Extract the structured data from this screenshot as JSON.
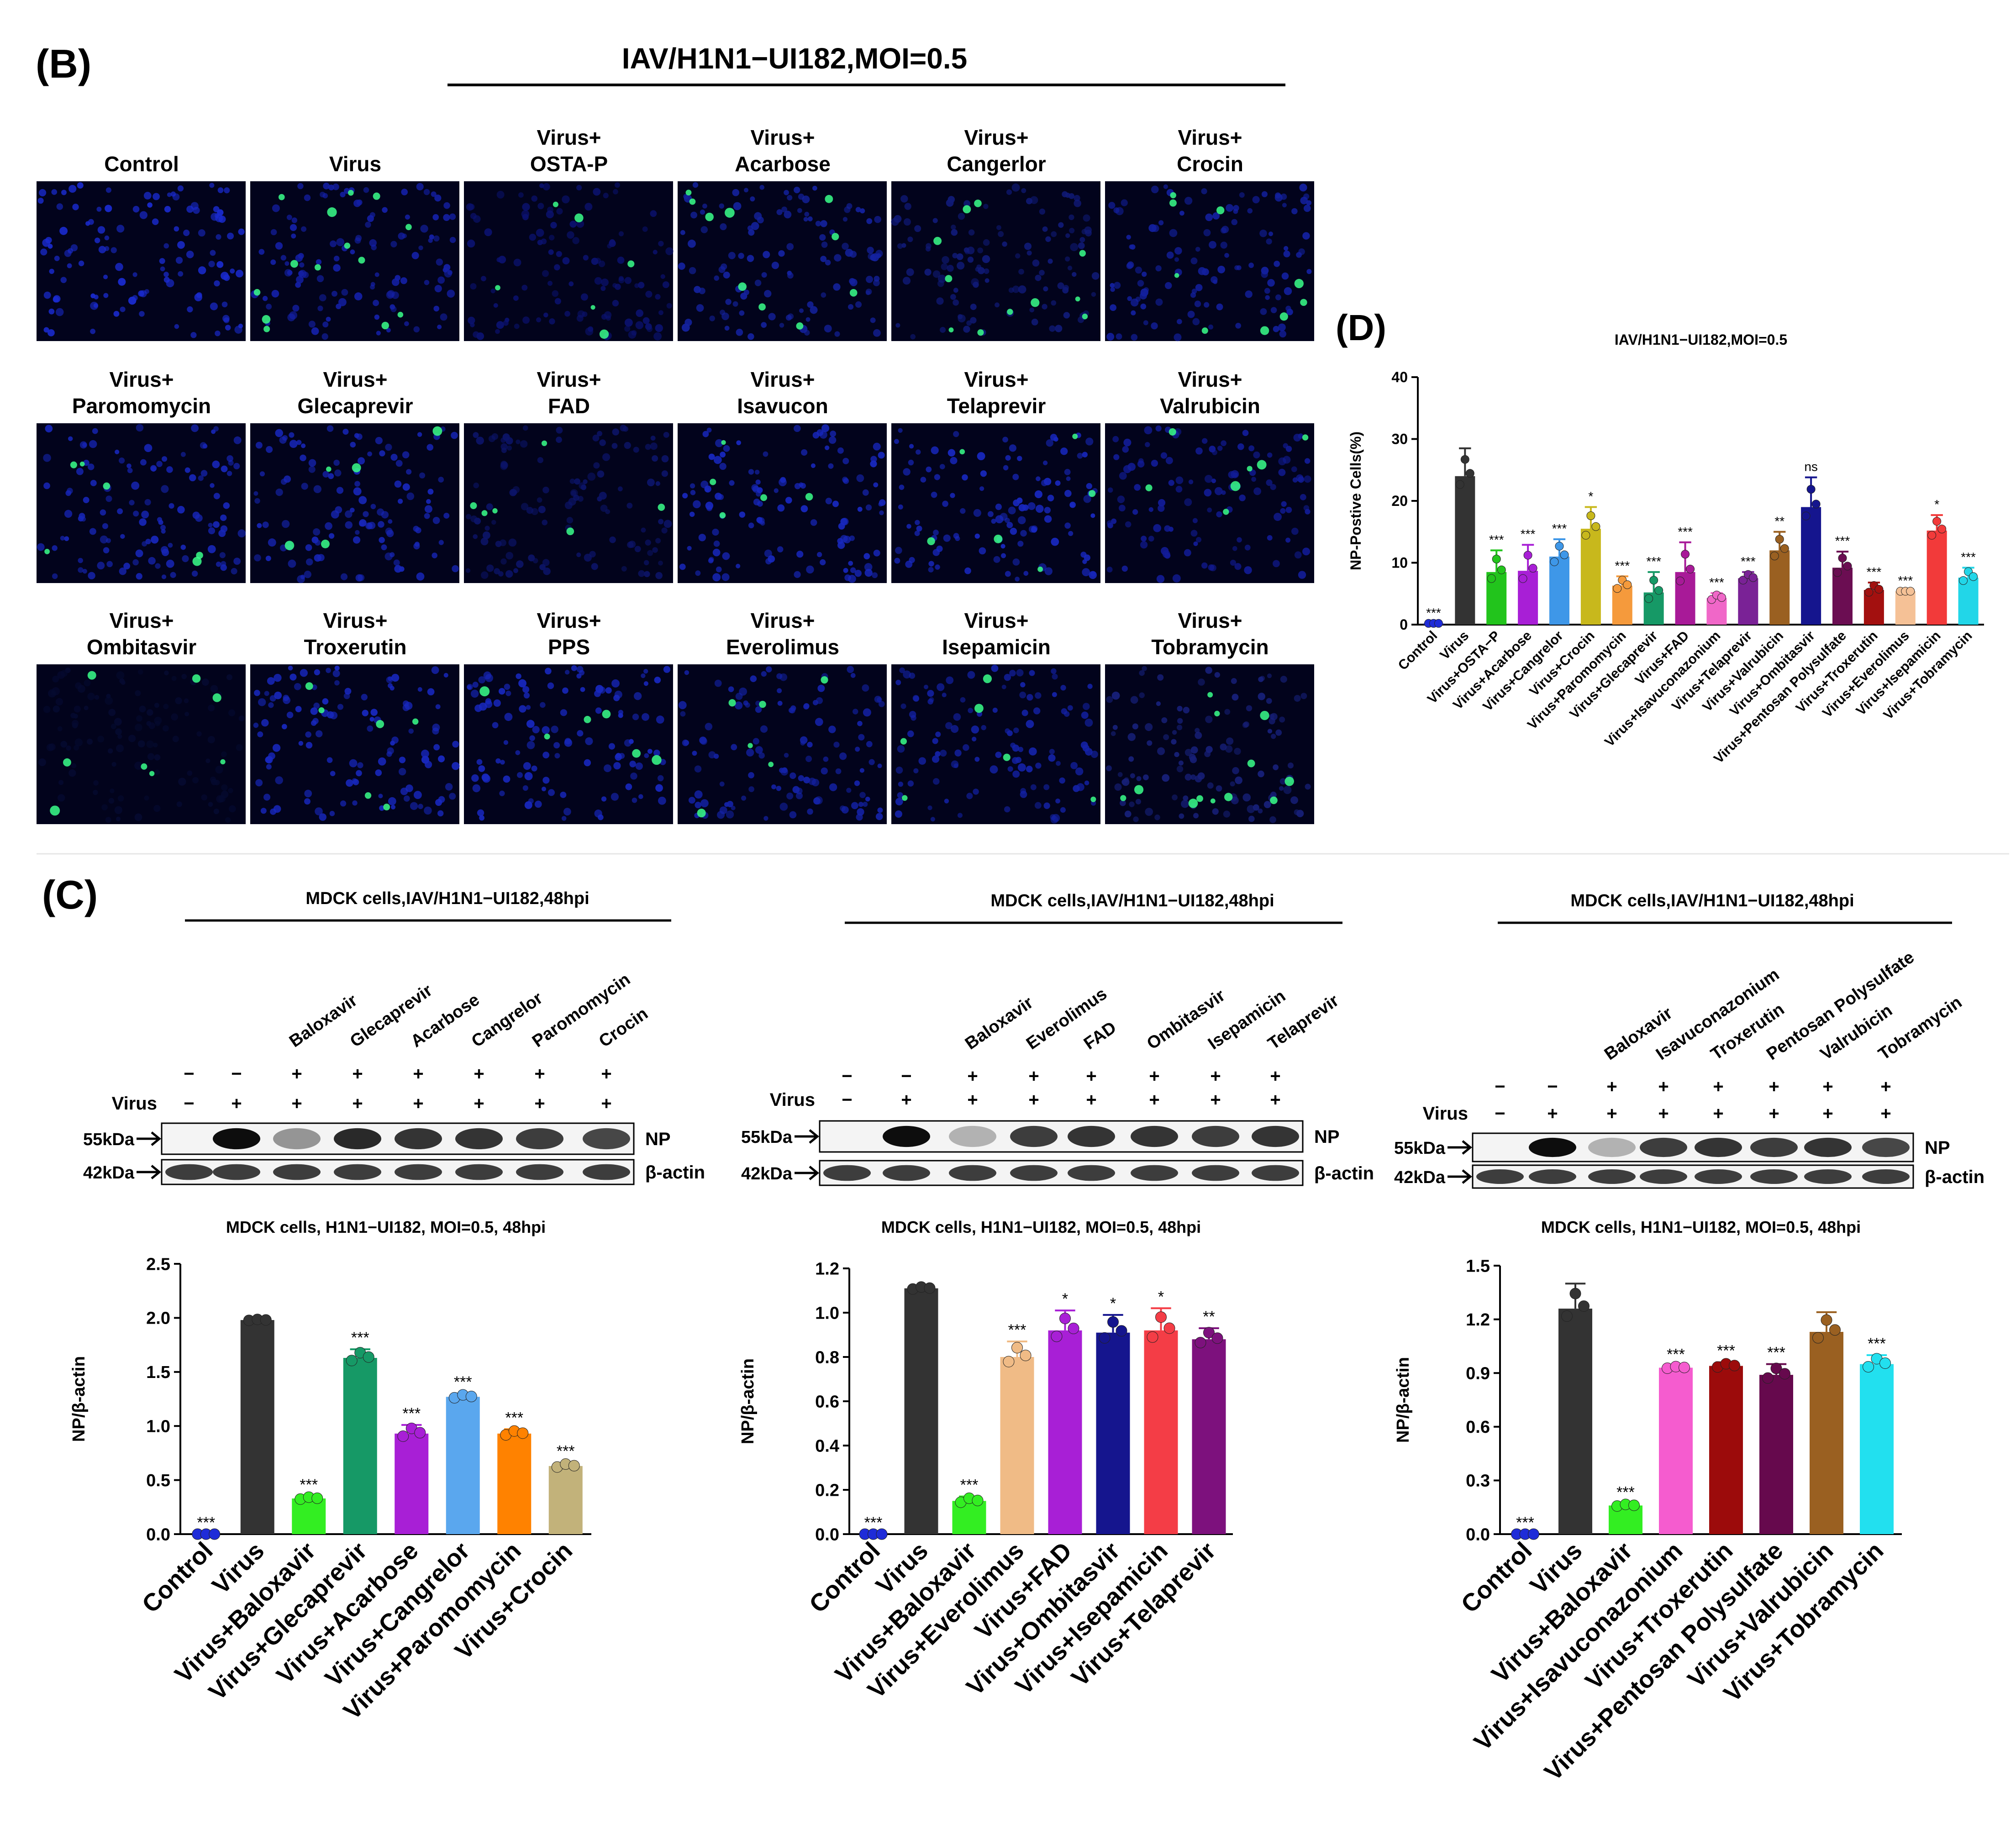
{
  "panel_b": {
    "letter": "(B)",
    "header": "IAV/H1N1−UI182,MOI=0.5",
    "tiles": [
      {
        "line1": "",
        "line2": "Control",
        "tone": "#1a2bd0",
        "green": 0
      },
      {
        "line1": "",
        "line2": "Virus",
        "tone": "#1420a8",
        "green": 14
      },
      {
        "line1": "Virus+",
        "line2": "OSTA-P",
        "tone": "#0b1270",
        "green": 6
      },
      {
        "line1": "Virus+",
        "line2": "Acarbose",
        "tone": "#1422a0",
        "green": 10
      },
      {
        "line1": "Virus+",
        "line2": "Cangerlor",
        "tone": "#101a78",
        "green": 11
      },
      {
        "line1": "Virus+",
        "line2": "Crocin",
        "tone": "#1320a0",
        "green": 9
      },
      {
        "line1": "Virus+",
        "line2": "Paromomycin",
        "tone": "#1726b8",
        "green": 6
      },
      {
        "line1": "Virus+",
        "line2": "Glecaprevir",
        "tone": "#1726b8",
        "green": 5
      },
      {
        "line1": "Virus+",
        "line2": "FAD",
        "tone": "#0c1468",
        "green": 6
      },
      {
        "line1": "Virus+",
        "line2": "Isavucon",
        "tone": "#1828c0",
        "green": 5
      },
      {
        "line1": "Virus+",
        "line2": "Telaprevir",
        "tone": "#1828c0",
        "green": 6
      },
      {
        "line1": "Virus+",
        "line2": "Valrubicin",
        "tone": "#121c98",
        "green": 7
      },
      {
        "line1": "Virus+",
        "line2": "Ombitasvir",
        "tone": "#050a30",
        "green": 8
      },
      {
        "line1": "Virus+",
        "line2": "Troxerutin",
        "tone": "#1828c0",
        "green": 6
      },
      {
        "line1": "Virus+",
        "line2": "PPS",
        "tone": "#1828c0",
        "green": 6
      },
      {
        "line1": "Virus+",
        "line2": "Everolimus",
        "tone": "#1422a8",
        "green": 6
      },
      {
        "line1": "Virus+",
        "line2": "Isepamicin",
        "tone": "#1422a8",
        "green": 6
      },
      {
        "line1": "Virus+",
        "line2": "Tobramycin",
        "tone": "#17207a",
        "green": 12
      }
    ]
  },
  "panel_c": {
    "letter": "(C)",
    "blots": [
      {
        "header": "MDCK cells,IAV/H1N1−UI182,48hpi",
        "drugs": [
          "Baloxavir",
          "Glecaprevir",
          "Acarbose",
          "Cangrelor",
          "Paromomycin",
          "Crocin"
        ],
        "virus_label": "Virus",
        "drug_row": [
          "−",
          "−",
          "+",
          "+",
          "+",
          "+",
          "+",
          "+"
        ],
        "virus_row": [
          "−",
          "+",
          "+",
          "+",
          "+",
          "+",
          "+",
          "+"
        ],
        "np_intensity": [
          0,
          1.0,
          0.3,
          0.85,
          0.8,
          0.8,
          0.75,
          0.7
        ],
        "marker_np": "55kDa",
        "marker_actin": "42kDa",
        "label_np": "NP",
        "label_actin": "β-actin"
      },
      {
        "header": "MDCK cells,IAV/H1N1−UI182,48hpi",
        "drugs": [
          "Baloxavir",
          "Everolimus",
          "FAD",
          "Ombitasvir",
          "Isepamicin",
          "Telaprevir"
        ],
        "virus_label": "Virus",
        "drug_row": [
          "−",
          "−",
          "+",
          "+",
          "+",
          "+",
          "+",
          "+"
        ],
        "virus_row": [
          "−",
          "+",
          "+",
          "+",
          "+",
          "+",
          "+",
          "+"
        ],
        "np_intensity": [
          0,
          1.0,
          0.15,
          0.75,
          0.8,
          0.8,
          0.75,
          0.8
        ],
        "marker_np": "55kDa",
        "marker_actin": "42kDa",
        "label_np": "NP",
        "label_actin": "β-actin"
      },
      {
        "header": "MDCK cells,IAV/H1N1−UI182,48hpi",
        "drugs": [
          "Baloxavir",
          "Isavuconazonium",
          "Troxerutin",
          "Pentosan Polysulfate",
          "Valrubicin",
          "Tobramycin"
        ],
        "virus_label": "Virus",
        "drug_row": [
          "−",
          "−",
          "+",
          "+",
          "+",
          "+",
          "+",
          "+"
        ],
        "virus_row": [
          "−",
          "+",
          "+",
          "+",
          "+",
          "+",
          "+",
          "+"
        ],
        "np_intensity": [
          0,
          1.0,
          0.15,
          0.75,
          0.8,
          0.75,
          0.8,
          0.7
        ],
        "marker_np": "55kDa",
        "marker_actin": "42kDa",
        "label_np": "NP",
        "label_actin": "β-actin"
      }
    ]
  },
  "panel_d": {
    "letter": "(D)"
  },
  "chart_data": [
    {
      "type": "bar",
      "id": "D",
      "title": "IAV/H1N1−UI182,MOI=0.5",
      "ylabel": "NP-Postive Cells(%)",
      "xlabel": "",
      "ylim": [
        0,
        40
      ],
      "yticks": [
        0,
        10,
        20,
        30,
        40
      ],
      "categories": [
        "Control",
        "Virus",
        "Virus+OSTA−P",
        "Virus+Acarbose",
        "Virus+Cangrelor",
        "Virus+Crocin",
        "Virus+Paromomycin",
        "Virus+Glecaprevir",
        "Virus+FAD",
        "Virus+Isavuconazonium",
        "Virus+Telaprevir",
        "Virus+Valrubicin",
        "Virus+Ombitasvir",
        "Virus+Pentosan Polysulfate",
        "Virus+Troxerutin",
        "Virus+Everolimus",
        "Virus+Isepamicin",
        "Virus+Tobramycin"
      ],
      "values": [
        0.2,
        24,
        8.5,
        8.7,
        11,
        15.5,
        6.3,
        5.2,
        8.5,
        4.3,
        7.5,
        12,
        19,
        9.2,
        5.6,
        5.4,
        15.2,
        7.6
      ],
      "errors": [
        0,
        4.5,
        3.5,
        4.2,
        2.8,
        3.5,
        1.5,
        3.3,
        4.8,
        0.8,
        1.0,
        3.0,
        4.8,
        2.6,
        1.2,
        0,
        2.5,
        1.6
      ],
      "significance": [
        "***",
        "",
        "***",
        "***",
        "***",
        "*",
        "***",
        "***",
        "***",
        "***",
        "***",
        "**",
        "ns",
        "***",
        "***",
        "***",
        "*",
        "***"
      ],
      "colors": [
        "#1f2cd8",
        "#333333",
        "#22c41c",
        "#a81fd6",
        "#3e97e8",
        "#c8b81c",
        "#f59a3c",
        "#169966",
        "#a81a98",
        "#f067c8",
        "#7a2296",
        "#9a6021",
        "#15158e",
        "#6b0d52",
        "#a3100f",
        "#f5c196",
        "#f23a3a",
        "#22d6e8"
      ]
    },
    {
      "type": "bar",
      "id": "C1",
      "title": "MDCK cells, H1N1−UI182, MOI=0.5, 48hpi",
      "ylabel": "NP/β-actin",
      "xlabel": "",
      "ylim": [
        0,
        2.5
      ],
      "yticks": [
        "0.0",
        "0.5",
        "1.0",
        "1.5",
        "2.0",
        "2.5"
      ],
      "categories": [
        "Control",
        "Virus",
        "Virus+Baloxavir",
        "Virus+Glecaprevir",
        "Virus+Acarbose",
        "Virus+Cangrelor",
        "Virus+Paromomycin",
        "Virus+Crocin"
      ],
      "values": [
        0.0,
        1.98,
        0.33,
        1.63,
        0.93,
        1.27,
        0.93,
        0.63
      ],
      "errors": [
        0,
        0.01,
        0.02,
        0.08,
        0.08,
        0.03,
        0.04,
        0.03
      ],
      "significance": [
        "***",
        "",
        "***",
        "***",
        "***",
        "***",
        "***",
        "***"
      ],
      "colors": [
        "#1f2cd8",
        "#333333",
        "#33ee22",
        "#169966",
        "#a81fd6",
        "#5aa7ee",
        "#ff8200",
        "#c2b27a"
      ]
    },
    {
      "type": "bar",
      "id": "C2",
      "title": "MDCK cells, H1N1−UI182, MOI=0.5, 48hpi",
      "ylabel": "NP/β-actin",
      "xlabel": "",
      "ylim": [
        0,
        1.2
      ],
      "yticks": [
        "0.0",
        "0.2",
        "0.4",
        "0.6",
        "0.8",
        "1.0",
        "1.2"
      ],
      "categories": [
        "Control",
        "Virus",
        "Virus+Baloxavir",
        "Virus+Everolimus",
        "Virus+FAD",
        "Virus+Ombitasvir",
        "Virus+Isepamicin",
        "Virus+Telaprevir"
      ],
      "values": [
        0.0,
        1.11,
        0.15,
        0.8,
        0.92,
        0.91,
        0.92,
        0.88
      ],
      "errors": [
        0,
        0.01,
        0.02,
        0.07,
        0.09,
        0.08,
        0.1,
        0.05
      ],
      "significance": [
        "***",
        "",
        "***",
        "***",
        "*",
        "*",
        "*",
        "**"
      ],
      "colors": [
        "#1f2cd8",
        "#333333",
        "#33ee22",
        "#f0bb86",
        "#a81fd6",
        "#15158e",
        "#f43d46",
        "#7d117d"
      ]
    },
    {
      "type": "bar",
      "id": "C3",
      "title": "MDCK cells, H1N1−UI182, MOI=0.5, 48hpi",
      "ylabel": "NP/β-actin",
      "xlabel": "",
      "ylim": [
        0,
        1.5
      ],
      "yticks": [
        "0.0",
        "0.3",
        "0.6",
        "0.9",
        "1.2",
        "1.5"
      ],
      "categories": [
        "Control",
        "Virus",
        "Virus+Baloxavir",
        "Virus+Isavuconazonium",
        "Virus+Troxerutin",
        "Virus+Pentosan Polysulfate",
        "Virus+Valrubicin",
        "Virus+Tobramycin"
      ],
      "values": [
        0.0,
        1.26,
        0.16,
        0.93,
        0.94,
        0.89,
        1.13,
        0.95
      ],
      "errors": [
        0,
        0.14,
        0.01,
        0.01,
        0.02,
        0.06,
        0.11,
        0.05
      ],
      "significance": [
        "***",
        "",
        "***",
        "***",
        "***",
        "***",
        "",
        "***"
      ],
      "colors": [
        "#1f2cd8",
        "#333333",
        "#33ee22",
        "#f55ccf",
        "#9c0b0b",
        "#66094d",
        "#9a6021",
        "#22e0ef"
      ]
    }
  ]
}
